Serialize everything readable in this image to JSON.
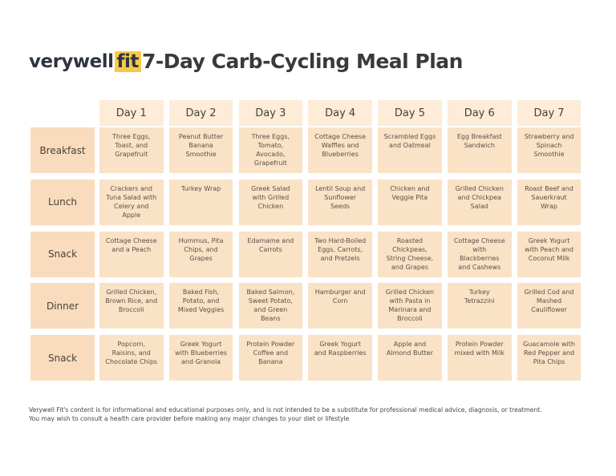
{
  "header": {
    "logo_main": "verywell",
    "logo_accent": "fit",
    "title": "7-Day Carb-Cycling Meal Plan"
  },
  "table": {
    "columns": [
      "Day 1",
      "Day 2",
      "Day 3",
      "Day 4",
      "Day 5",
      "Day 6",
      "Day 7"
    ],
    "rows": [
      {
        "label": "Breakfast",
        "cells": [
          "Three Eggs, Toast, and Grapefruit",
          "Peanut Butter Banana Smoothie",
          "Three Eggs, Tomato, Avocado, Grapefruit",
          "Cottage Cheese Waffles and Blueberries",
          "Scrambled Eggs and Oatmeal",
          "Egg Breakfast Sandwich",
          "Strawberry and Spinach Smoothie"
        ]
      },
      {
        "label": "Lunch",
        "cells": [
          "Crackers and Tuna Salad with Celery and Apple",
          "Turkey Wrap",
          "Greek Salad with Grilled Chicken",
          "Lentil Soup and Sunflower Seeds",
          "Chicken and Veggie Pita",
          "Grilled Chicken and Chickpea Salad",
          "Roast Beef and Sauerkraut Wrap"
        ]
      },
      {
        "label": "Snack",
        "cells": [
          "Cottage Cheese and a Peach",
          "Hummus, Pita Chips, and Grapes",
          "Edamame and Carrots",
          "Two Hard-Boiled Eggs, Carrots, and Pretzels",
          "Roasted Chickpeas, String Cheese, and Grapes",
          "Cottage Cheese with Blackberries and Cashews",
          "Greek Yogurt with Peach and Coconut Milk"
        ]
      },
      {
        "label": "Dinner",
        "cells": [
          "Grilled Chicken, Brown Rice, and Broccoli",
          "Baked Fish, Potato, and Mixed Veggies",
          "Baked Salmon, Sweet Potato, and Green Beans",
          "Hamburger and Corn",
          "Grilled Chicken with Pasta in Marinara and Broccoli",
          "Turkey Tetrazzini",
          "Grilled Cod and Mashed Cauliflower"
        ]
      },
      {
        "label": "Snack",
        "cells": [
          "Popcorn, Raisins, and Chocolate Chips",
          "Greek Yogurt with Blueberries and Granola",
          "Protein Powder Coffee and Banana",
          "Greek Yogurt and Raspberries",
          "Apple and Almond Butter",
          "Protein Powder mixed with Milk",
          "Guacamole with Red Pepper and Pita Chips"
        ]
      }
    ]
  },
  "footer": [
    "Verywell Fit's content is for informational and educational purposes only, and is not intended to be a substitute for professional medical advice, diagnosis, or treatment.",
    "You may wish to consult a health care provider before making any major changes to your diet or lifestyle"
  ]
}
